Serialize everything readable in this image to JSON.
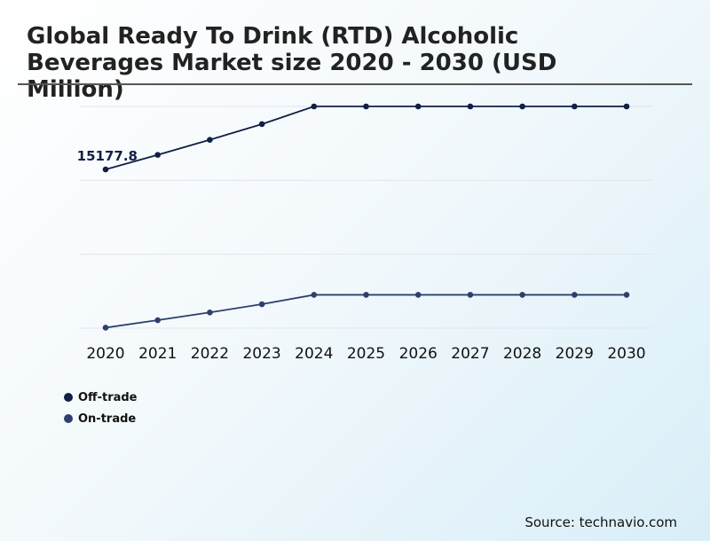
{
  "title": "Global Ready To Drink (RTD) Alcoholic Beverages Market size 2020 - 2030 (USD Million)",
  "source": "Source: technavio.com",
  "colors": {
    "off_trade": "#0f1f45",
    "on_trade": "#2d3f6e",
    "grid": "#e2e6ea",
    "title_rule": "#555555"
  },
  "chart_data": {
    "type": "line",
    "categories": [
      "2020",
      "2021",
      "2022",
      "2023",
      "2024",
      "2025",
      "2026",
      "2027",
      "2028",
      "2029",
      "2030"
    ],
    "series": [
      {
        "name": "Off-trade",
        "values": [
          15177.8,
          15330,
          15487,
          15651,
          15836,
          15836,
          15836,
          15836,
          15836,
          15836,
          15836
        ]
      },
      {
        "name": "On-trade",
        "values": [
          13525,
          13603,
          13684,
          13770,
          13868,
          13868,
          13868,
          13868,
          13868,
          13868,
          13868
        ]
      }
    ],
    "annotations": [
      {
        "series": "Off-trade",
        "category": "2020",
        "label": "15177.8"
      }
    ],
    "ylim": [
      13520,
      15836
    ],
    "grid": true,
    "legend": "bottom-left"
  }
}
